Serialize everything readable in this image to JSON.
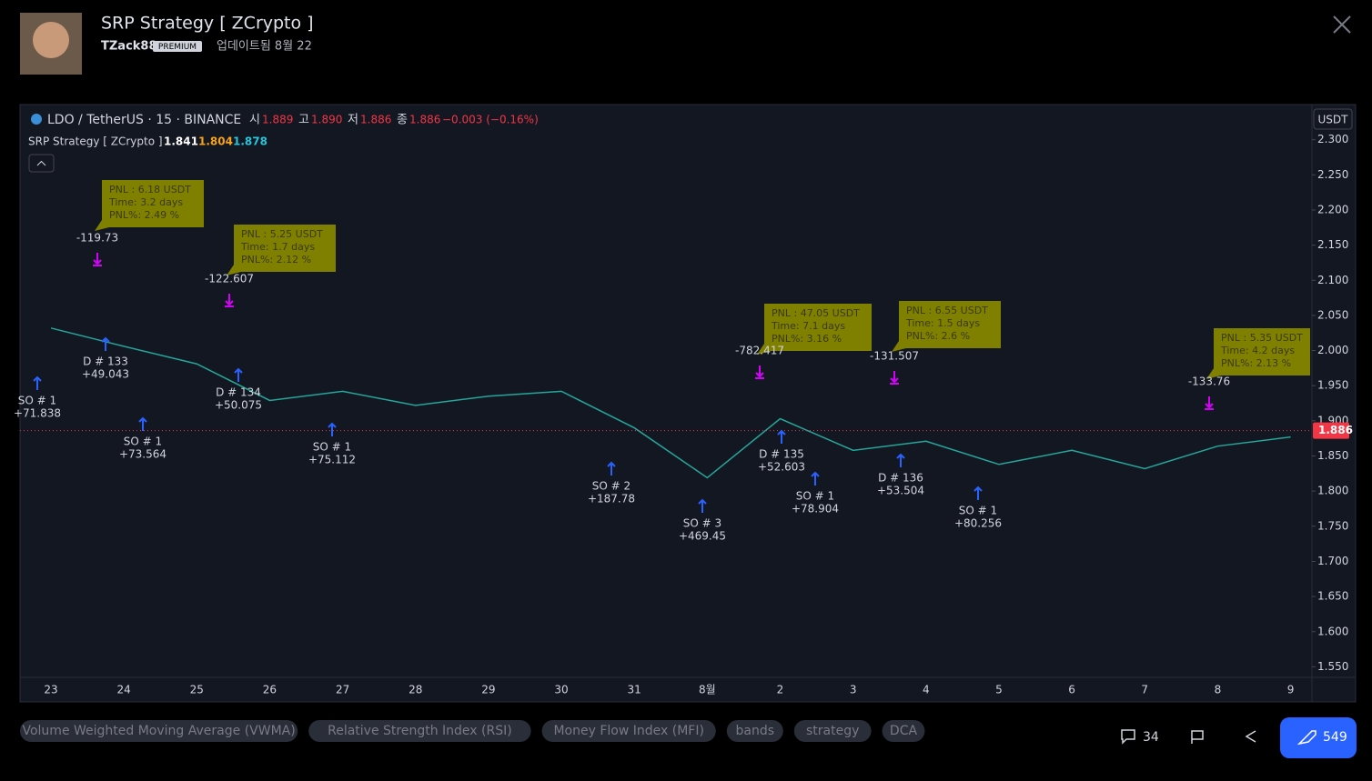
{
  "header": {
    "title": "SRP Strategy [ ZCrypto ]",
    "author": "TZack88",
    "badge": "PREMIUM",
    "updated": "업데이트됨 8월 22"
  },
  "chart_data": {
    "type": "line",
    "symbol": "LDO / TetherUS · 15 · BINANCE",
    "ohlc": [
      {
        "label": "시",
        "value": 1.889
      },
      {
        "label": "고",
        "value": 1.89,
        "value_label": "1.890"
      },
      {
        "label": "저",
        "value": 1.886
      },
      {
        "label": "종",
        "value": 1.886
      }
    ],
    "change": "−0.003 (−0.16%)",
    "indicator": {
      "name": "SRP Strategy [ ZCrypto ]",
      "values": [
        1.841,
        1.804,
        1.878
      ],
      "colors": [
        "#ffffff",
        "#f7a21b",
        "#26c6da"
      ]
    },
    "currency": "USDT",
    "last_price": 1.886,
    "categories": [
      "23",
      "24",
      "25",
      "26",
      "27",
      "28",
      "29",
      "30",
      "31",
      "8월",
      "2",
      "3",
      "4",
      "5",
      "6",
      "7",
      "8",
      "9"
    ],
    "series": [
      {
        "name": "LDO / TetherUS",
        "color": "#26a69a",
        "values": [
          2.032,
          2.006,
          1.981,
          1.929,
          1.942,
          1.922,
          1.935,
          1.942,
          1.89,
          1.819,
          1.903,
          1.858,
          1.871,
          1.838,
          1.858,
          1.832,
          1.864,
          1.877
        ]
      }
    ],
    "ylim": [
      1.535,
      2.35
    ],
    "yticks": [
      {
        "value": 2.3,
        "label": "2.300"
      },
      {
        "value": 2.25,
        "label": "2.250"
      },
      {
        "value": 2.2,
        "label": "2.200"
      },
      {
        "value": 2.15,
        "label": "2.150"
      },
      {
        "value": 2.1,
        "label": "2.100"
      },
      {
        "value": 2.05,
        "label": "2.050"
      },
      {
        "value": 2,
        "label": "2.000"
      },
      {
        "value": 1.95,
        "label": "1.950"
      },
      {
        "value": 1.9,
        "label": "1.900"
      },
      {
        "value": 1.85,
        "label": "1.850"
      },
      {
        "value": 1.8,
        "label": "1.800"
      },
      {
        "value": 1.75,
        "label": "1.750"
      },
      {
        "value": 1.7,
        "label": "1.700"
      },
      {
        "value": 1.65,
        "label": "1.650"
      },
      {
        "value": 1.6,
        "label": "1.600"
      },
      {
        "value": 1.55,
        "label": "1.550"
      }
    ],
    "pnl_boxes": [
      [
        "PNL :  6.18  USDT",
        "Time:  3.2 days",
        "PNL%:  2.49 %"
      ],
      [
        "PNL :  5.25  USDT",
        "Time:  1.7 days",
        "PNL%:  2.12 %"
      ],
      [
        "PNL :  47.05  USDT",
        "Time:  7.1 days",
        "PNL%:  3.16 %"
      ],
      [
        "PNL :  6.55  USDT",
        "Time:  1.5 days",
        "PNL%:  2.6 %"
      ],
      [
        "PNL :  5.35  USDT",
        "Time:  4.2 days",
        "PNL%:  2.13 %"
      ]
    ],
    "loss_labels": [
      "-119.73",
      "-122.607",
      "-782.417",
      "-131.507",
      "-133.76"
    ],
    "order_labels": [
      [
        "SO # 1",
        "+71.838"
      ],
      [
        "D # 133",
        "+49.043"
      ],
      [
        "SO # 1",
        "+73.564"
      ],
      [
        "D # 134",
        "+50.075"
      ],
      [
        "SO # 1",
        "+75.112"
      ],
      [
        "SO # 2",
        "+187.78"
      ],
      [
        "SO # 3",
        "+469.45"
      ],
      [
        "D # 135",
        "+52.603"
      ],
      [
        "SO # 1",
        "+78.904"
      ],
      [
        "D # 136",
        "+53.504"
      ],
      [
        "SO # 1",
        "+80.256"
      ]
    ]
  },
  "tags": [
    "Volume Weighted Moving Average (VWMA)",
    "Relative Strength Index (RSI)",
    "Money Flow Index (MFI)",
    "bands",
    "strategy",
    "DCA"
  ],
  "footer": {
    "comments": "34",
    "boosts": "549"
  }
}
